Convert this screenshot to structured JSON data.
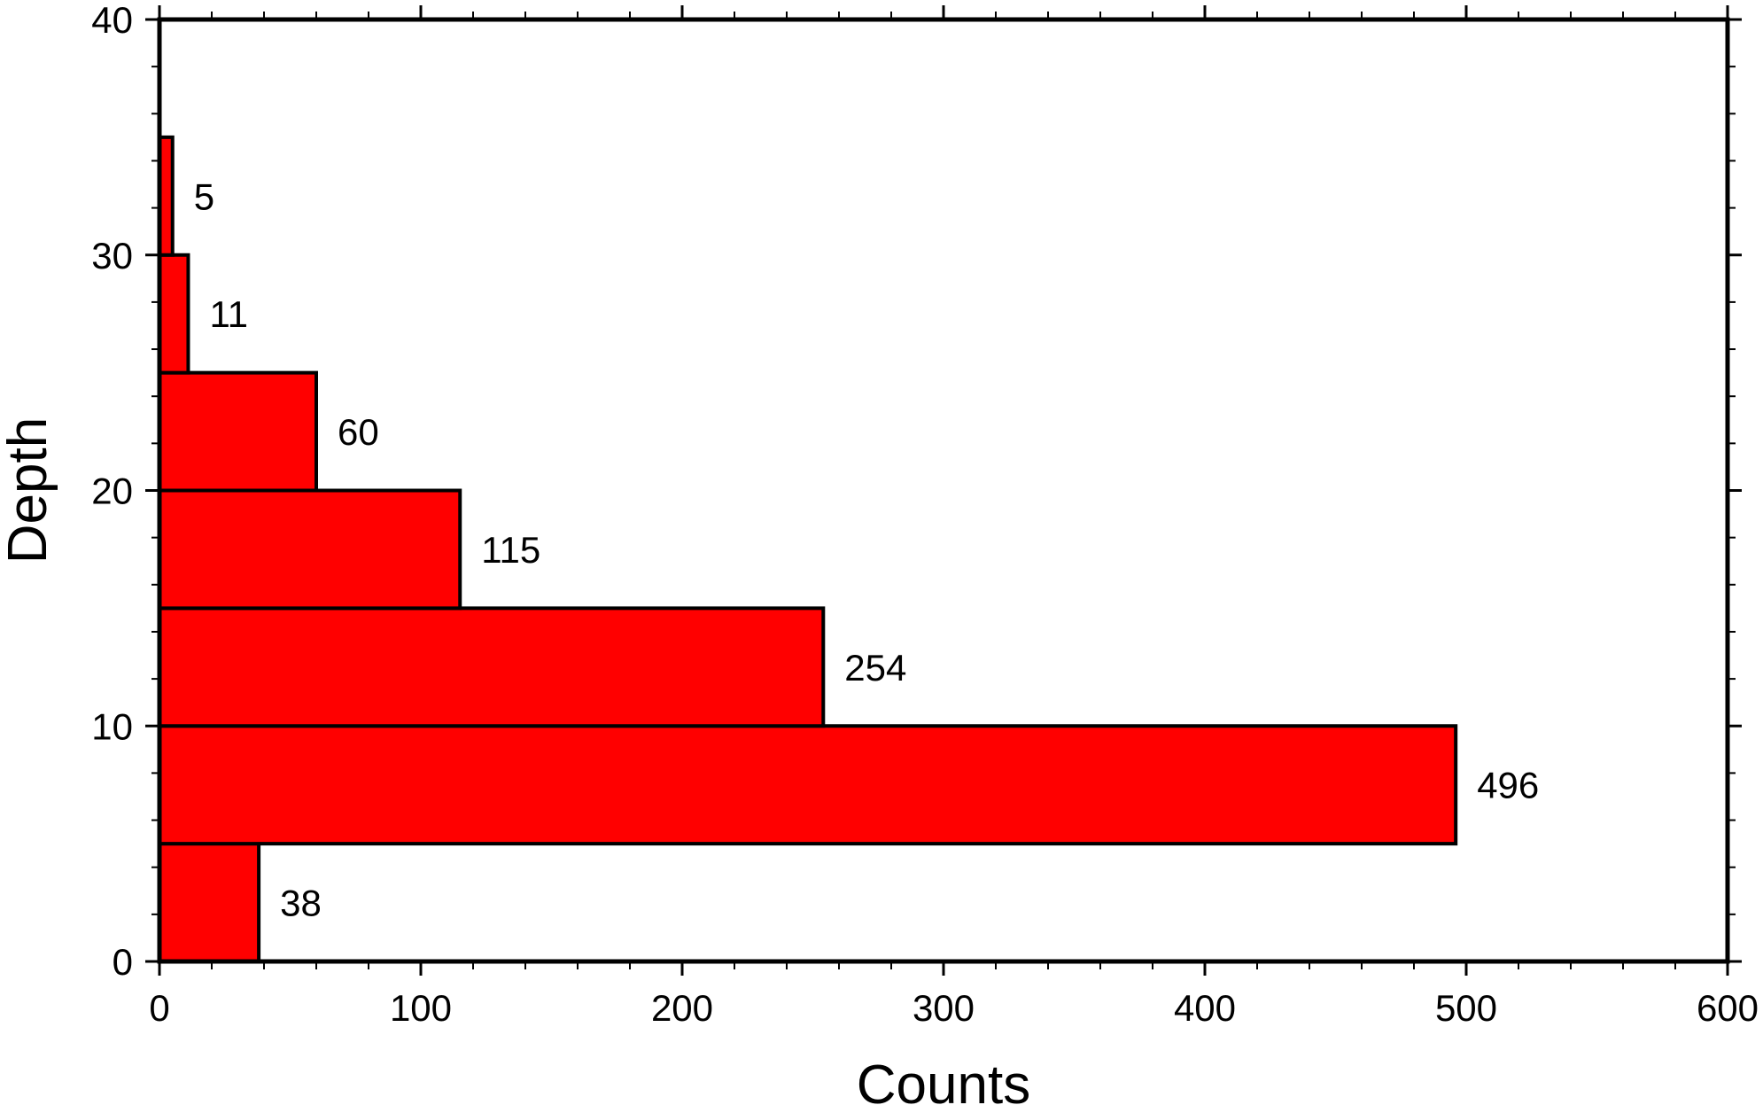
{
  "chart_data": {
    "type": "bar",
    "orientation": "horizontal",
    "title": "",
    "xlabel": "Counts",
    "ylabel": "Depth",
    "xlim": [
      0,
      600
    ],
    "ylim": [
      0,
      40
    ],
    "x_ticks": [
      "0",
      "100",
      "200",
      "300",
      "400",
      "500",
      "600"
    ],
    "y_ticks": [
      "0",
      "10",
      "20",
      "30",
      "40"
    ],
    "bin_width": 5,
    "bins": [
      {
        "from": 0,
        "to": 5,
        "value": 38,
        "label": "38"
      },
      {
        "from": 5,
        "to": 10,
        "value": 496,
        "label": "496"
      },
      {
        "from": 10,
        "to": 15,
        "value": 254,
        "label": "254"
      },
      {
        "from": 15,
        "to": 20,
        "value": 115,
        "label": "115"
      },
      {
        "from": 20,
        "to": 25,
        "value": 60,
        "label": "60"
      },
      {
        "from": 25,
        "to": 30,
        "value": 11,
        "label": "11"
      },
      {
        "from": 30,
        "to": 35,
        "value": 5,
        "label": "5"
      }
    ],
    "bar_color": "#ff0000",
    "edge_color": "#000000",
    "grid": false,
    "legend": "none"
  }
}
